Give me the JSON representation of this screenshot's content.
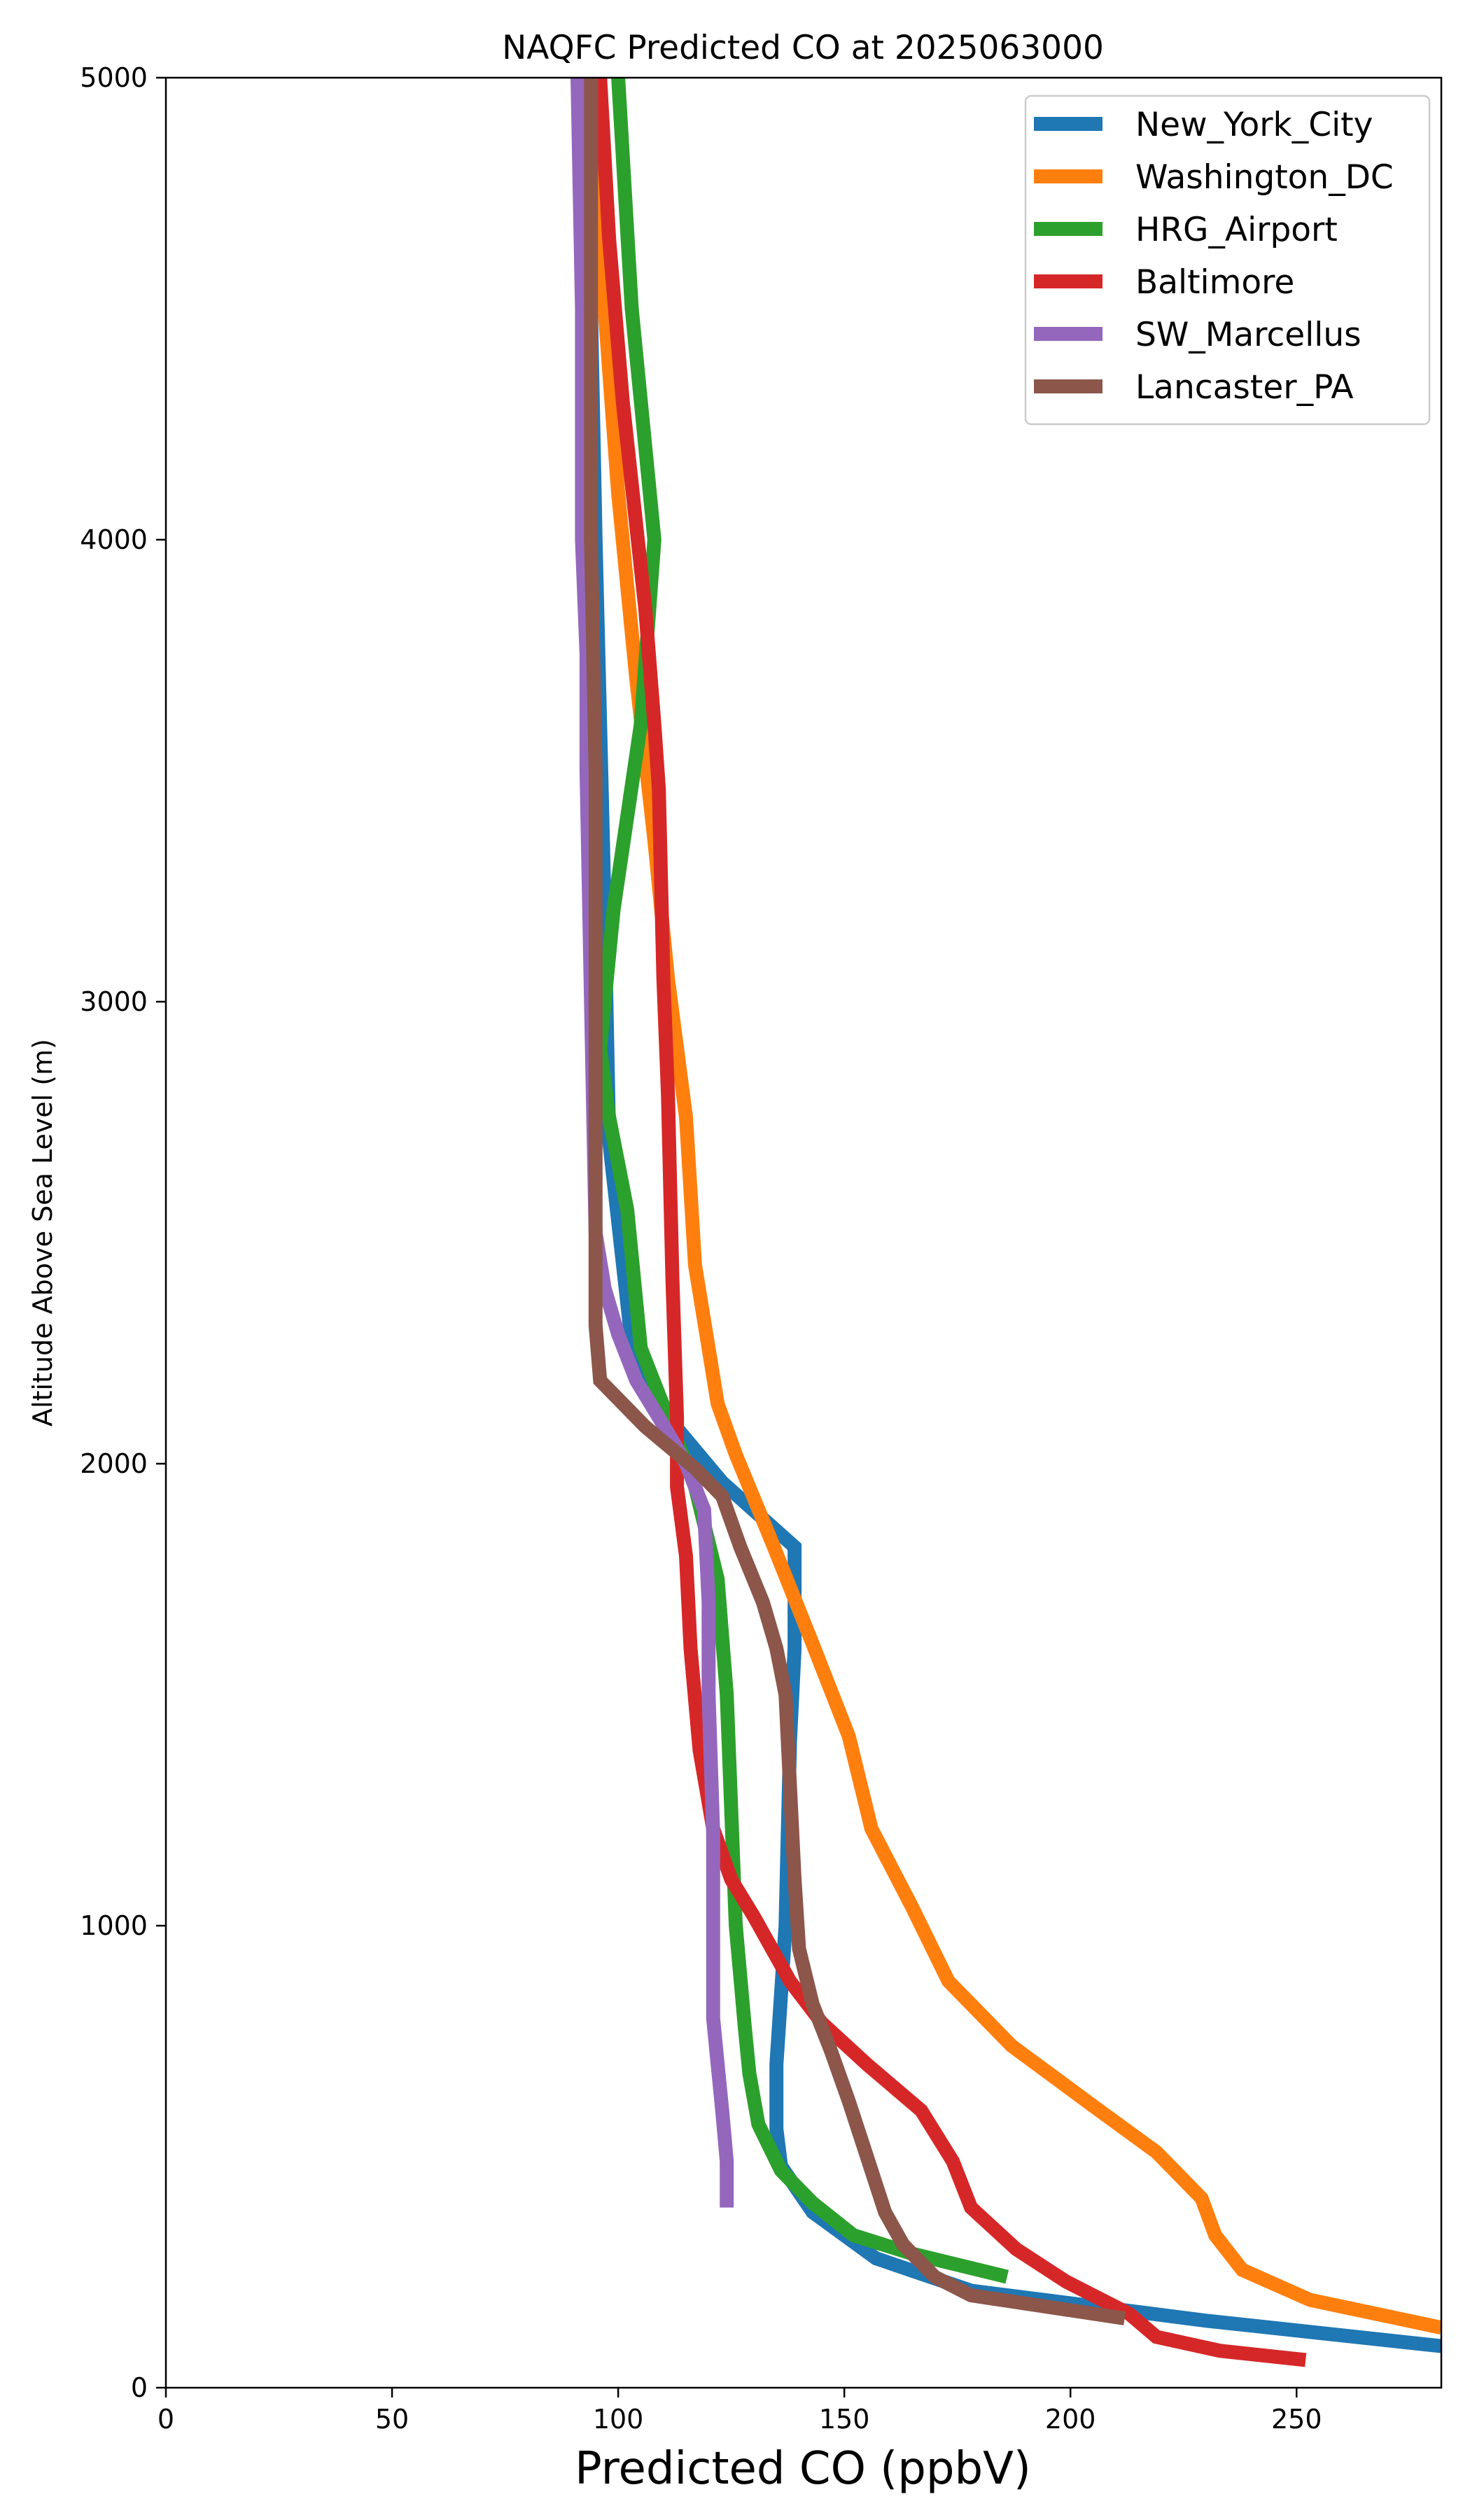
{
  "chart_data": {
    "type": "line",
    "title": "NAQFC Predicted CO at 2025063000",
    "xlabel": "Predicted CO (ppbV)",
    "ylabel": "Altitude Above Sea Level (m)",
    "xlim": [
      0,
      282
    ],
    "ylim": [
      0,
      5000
    ],
    "x_ticks": [
      0,
      50,
      100,
      150,
      200,
      250
    ],
    "y_ticks": [
      0,
      1000,
      2000,
      3000,
      4000,
      5000
    ],
    "grid": false,
    "legend_position": "top-right",
    "series": [
      {
        "name": "New_York_City",
        "color": "#1f77b4",
        "points": [
          [
            282,
            90
          ],
          [
            230,
            145
          ],
          [
            178,
            210
          ],
          [
            157,
            280
          ],
          [
            143,
            380
          ],
          [
            136,
            480
          ],
          [
            135,
            560
          ],
          [
            135,
            700
          ],
          [
            137,
            1000
          ],
          [
            138,
            1400
          ],
          [
            139,
            1600
          ],
          [
            139,
            1820
          ],
          [
            123,
            1960
          ],
          [
            111,
            2100
          ],
          [
            103,
            2260
          ],
          [
            98,
            2700
          ],
          [
            97,
            3200
          ],
          [
            96,
            3600
          ],
          [
            95,
            4000
          ],
          [
            94,
            4500
          ],
          [
            93,
            5000
          ]
        ]
      },
      {
        "name": "Washington_DC",
        "color": "#ff7f0e",
        "points": [
          [
            282,
            130
          ],
          [
            253,
            190
          ],
          [
            238,
            255
          ],
          [
            232,
            330
          ],
          [
            229,
            410
          ],
          [
            219,
            510
          ],
          [
            205,
            610
          ],
          [
            187,
            740
          ],
          [
            173,
            880
          ],
          [
            165,
            1040
          ],
          [
            156,
            1210
          ],
          [
            151,
            1410
          ],
          [
            143,
            1610
          ],
          [
            134,
            1830
          ],
          [
            126,
            2020
          ],
          [
            122,
            2130
          ],
          [
            117,
            2430
          ],
          [
            115,
            2750
          ],
          [
            111,
            3050
          ],
          [
            108,
            3350
          ],
          [
            104,
            3700
          ],
          [
            100,
            4100
          ],
          [
            97,
            4500
          ],
          [
            95,
            5000
          ]
        ]
      },
      {
        "name": "HRG_Airport",
        "color": "#2ca02c",
        "points": [
          [
            186,
            240
          ],
          [
            165,
            290
          ],
          [
            152,
            330
          ],
          [
            143,
            400
          ],
          [
            136,
            470
          ],
          [
            131,
            570
          ],
          [
            129,
            680
          ],
          [
            128,
            780
          ],
          [
            126,
            1000
          ],
          [
            125,
            1250
          ],
          [
            124,
            1500
          ],
          [
            122,
            1750
          ],
          [
            117,
            1950
          ],
          [
            111,
            2100
          ],
          [
            105,
            2250
          ],
          [
            102,
            2550
          ],
          [
            98,
            2750
          ],
          [
            96,
            2900
          ],
          [
            99,
            3200
          ],
          [
            105,
            3600
          ],
          [
            108,
            4000
          ],
          [
            103,
            4500
          ],
          [
            100,
            5000
          ]
        ]
      },
      {
        "name": "Baltimore",
        "color": "#d62728",
        "points": [
          [
            252,
            60
          ],
          [
            233,
            80
          ],
          [
            219,
            110
          ],
          [
            213,
            160
          ],
          [
            205,
            200
          ],
          [
            199,
            230
          ],
          [
            188,
            300
          ],
          [
            178,
            390
          ],
          [
            174,
            490
          ],
          [
            167,
            600
          ],
          [
            155,
            700
          ],
          [
            145,
            790
          ],
          [
            138,
            880
          ],
          [
            130,
            1020
          ],
          [
            125,
            1100
          ],
          [
            121,
            1210
          ],
          [
            118,
            1380
          ],
          [
            116,
            1600
          ],
          [
            115,
            1800
          ],
          [
            113,
            1950
          ],
          [
            113,
            2100
          ],
          [
            112,
            2400
          ],
          [
            111,
            2800
          ],
          [
            110,
            3050
          ],
          [
            109,
            3460
          ],
          [
            108,
            3600
          ],
          [
            106,
            3850
          ],
          [
            101,
            4300
          ],
          [
            98,
            4650
          ],
          [
            96,
            5000
          ]
        ]
      },
      {
        "name": "SW_Marcellus",
        "color": "#9467bd",
        "points": [
          [
            124,
            390
          ],
          [
            124,
            490
          ],
          [
            123,
            600
          ],
          [
            122,
            700
          ],
          [
            121,
            800
          ],
          [
            121,
            1000
          ],
          [
            121,
            1200
          ],
          [
            120,
            1500
          ],
          [
            120,
            1700
          ],
          [
            119,
            1900
          ],
          [
            115,
            2000
          ],
          [
            109,
            2100
          ],
          [
            104,
            2180
          ],
          [
            100,
            2280
          ],
          [
            97,
            2380
          ],
          [
            95,
            2500
          ],
          [
            94,
            3000
          ],
          [
            93,
            3500
          ],
          [
            93,
            3750
          ],
          [
            92,
            4000
          ],
          [
            92,
            4500
          ],
          [
            91,
            5000
          ]
        ]
      },
      {
        "name": "Lancaster_PA",
        "color": "#8c564b",
        "points": [
          [
            212,
            150
          ],
          [
            178,
            200
          ],
          [
            170,
            240
          ],
          [
            163,
            310
          ],
          [
            159,
            380
          ],
          [
            155,
            500
          ],
          [
            151,
            620
          ],
          [
            147,
            730
          ],
          [
            143,
            830
          ],
          [
            140,
            950
          ],
          [
            139,
            1100
          ],
          [
            138,
            1300
          ],
          [
            137,
            1500
          ],
          [
            135,
            1600
          ],
          [
            132,
            1700
          ],
          [
            127,
            1820
          ],
          [
            123,
            1930
          ],
          [
            117,
            1990
          ],
          [
            106,
            2080
          ],
          [
            96,
            2180
          ],
          [
            95,
            2300
          ],
          [
            95,
            2500
          ],
          [
            95,
            3000
          ],
          [
            95,
            3500
          ],
          [
            94,
            4000
          ],
          [
            94,
            4500
          ],
          [
            94,
            5000
          ]
        ]
      }
    ]
  }
}
